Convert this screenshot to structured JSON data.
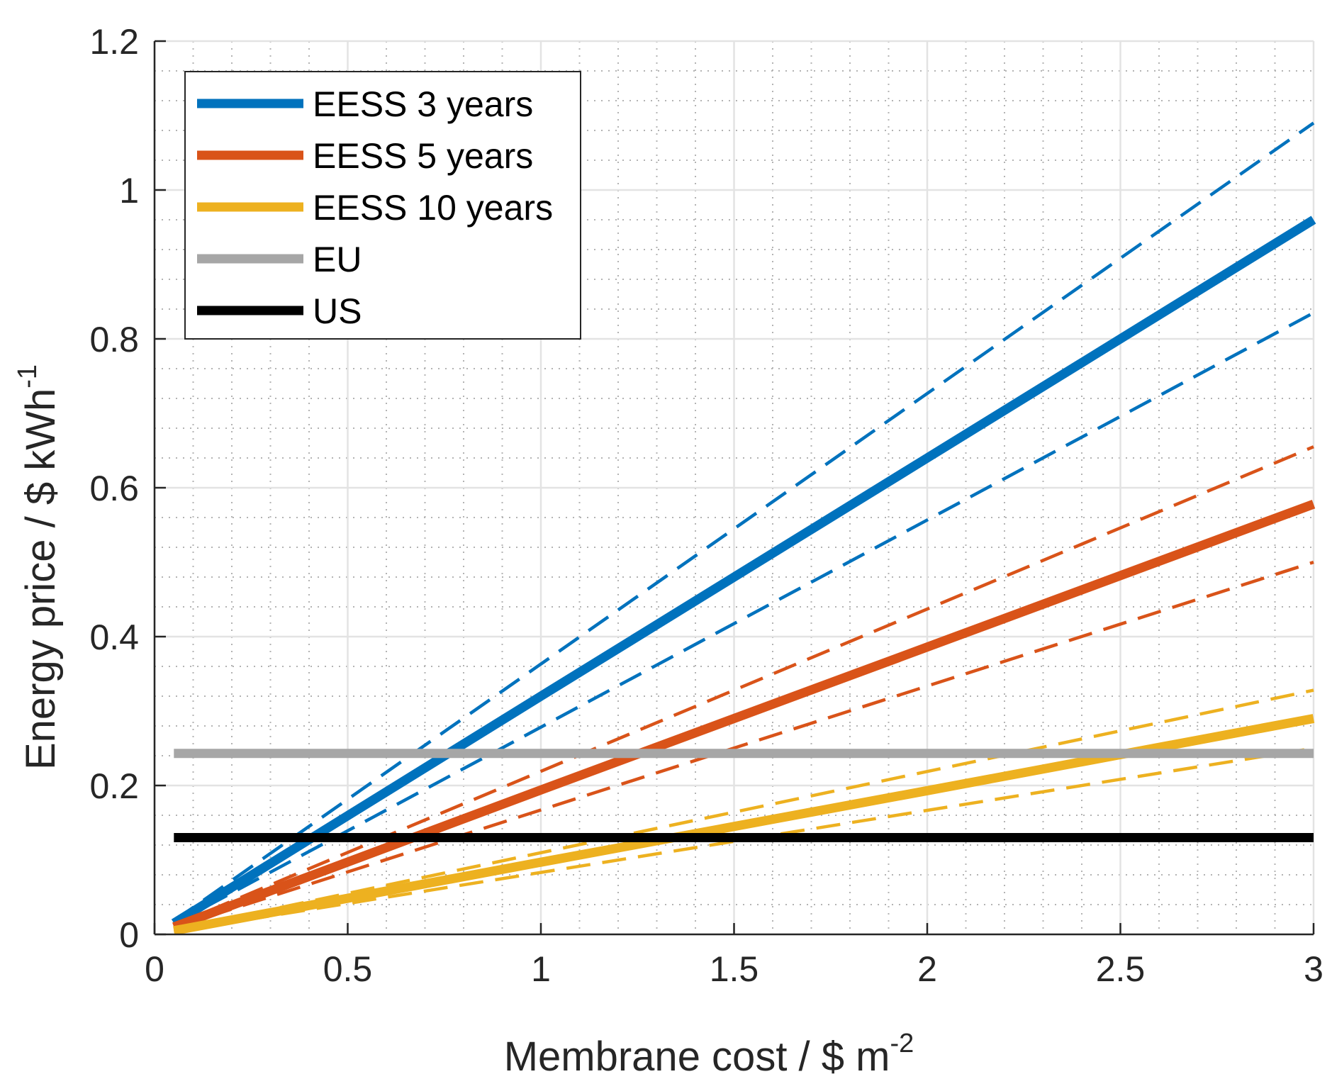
{
  "chart_data": {
    "type": "line",
    "xlabel": "Membrane cost / $ m",
    "xlabel_sup": "-2",
    "ylabel": "Energy price / $ kWh",
    "ylabel_sup": "-1",
    "xlim": [
      0,
      3
    ],
    "ylim": [
      0,
      1.2
    ],
    "xticks": [
      0,
      0.5,
      1,
      1.5,
      2,
      2.5,
      3
    ],
    "xtick_labels": [
      "0",
      "0.5",
      "1",
      "1.5",
      "2",
      "2.5",
      "3"
    ],
    "yticks": [
      0,
      0.2,
      0.4,
      0.6,
      0.8,
      1,
      1.2
    ],
    "ytick_labels": [
      "0",
      "0.2",
      "0.4",
      "0.6",
      "0.8",
      "1",
      "1.2"
    ],
    "grid": true,
    "minor_grid": true,
    "legend_position": "top-left",
    "series": [
      {
        "name": "EESS 3 years",
        "color": "#0072BD",
        "style": "solid",
        "x": [
          0.05,
          1,
          2,
          3
        ],
        "y": [
          0.015,
          0.32,
          0.64,
          0.96
        ]
      },
      {
        "name": "EESS 3 years upper bound",
        "color": "#0072BD",
        "style": "dashed",
        "legend": false,
        "x": [
          0.05,
          3
        ],
        "y": [
          0.018,
          1.09
        ]
      },
      {
        "name": "EESS 3 years lower bound",
        "color": "#0072BD",
        "style": "dashed",
        "legend": false,
        "x": [
          0.05,
          3
        ],
        "y": [
          0.014,
          0.835
        ]
      },
      {
        "name": "EESS 5 years",
        "color": "#D95319",
        "style": "solid",
        "x": [
          0.05,
          1,
          2,
          3
        ],
        "y": [
          0.01,
          0.194,
          0.386,
          0.578
        ]
      },
      {
        "name": "EESS 5 years upper bound",
        "color": "#D95319",
        "style": "dashed",
        "legend": false,
        "x": [
          0.05,
          3
        ],
        "y": [
          0.012,
          0.655
        ]
      },
      {
        "name": "EESS 5 years lower bound",
        "color": "#D95319",
        "style": "dashed",
        "legend": false,
        "x": [
          0.05,
          3
        ],
        "y": [
          0.009,
          0.5
        ]
      },
      {
        "name": "EESS 10 years",
        "color": "#EDB120",
        "style": "solid",
        "x": [
          0.05,
          1,
          2,
          3
        ],
        "y": [
          0.005,
          0.097,
          0.193,
          0.29
        ]
      },
      {
        "name": "EESS 10 years upper bound",
        "color": "#EDB120",
        "style": "dashed",
        "legend": false,
        "x": [
          0.05,
          3
        ],
        "y": [
          0.006,
          0.328
        ]
      },
      {
        "name": "EESS 10 years lower bound",
        "color": "#EDB120",
        "style": "dashed",
        "legend": false,
        "x": [
          0.05,
          3
        ],
        "y": [
          0.004,
          0.25
        ]
      },
      {
        "name": "EU",
        "color": "#A6A6A6",
        "style": "solid",
        "x": [
          0.05,
          3
        ],
        "y": [
          0.243,
          0.243
        ]
      },
      {
        "name": "US",
        "color": "#000000",
        "style": "solid",
        "x": [
          0.05,
          3
        ],
        "y": [
          0.13,
          0.13
        ]
      }
    ]
  }
}
